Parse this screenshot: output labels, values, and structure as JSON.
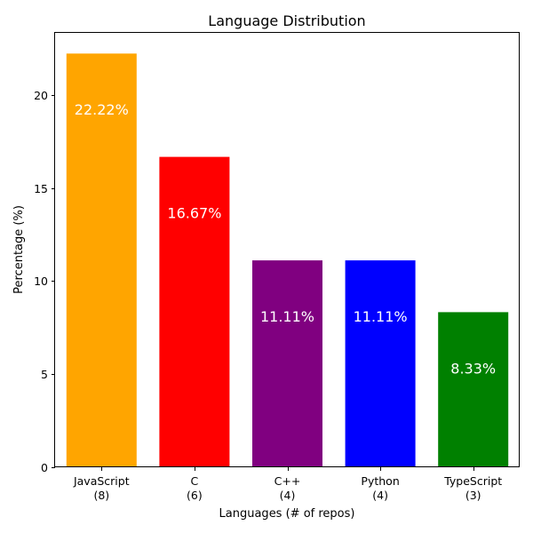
{
  "chart_data": {
    "type": "bar",
    "title": "Language Distribution",
    "xlabel": "Languages (# of repos)",
    "ylabel": "Percentage (%)",
    "ylim": [
      0,
      23.33
    ],
    "yticks": [
      0,
      5,
      10,
      15,
      20
    ],
    "categories": [
      [
        "JavaScript",
        "(8)"
      ],
      [
        "C",
        "(6)"
      ],
      [
        "C++",
        "(4)"
      ],
      [
        "Python",
        "(4)"
      ],
      [
        "TypeScript",
        "(3)"
      ]
    ],
    "values": [
      22.22,
      16.67,
      11.11,
      11.11,
      8.33
    ],
    "data_labels": [
      "22.22%",
      "16.67%",
      "11.11%",
      "11.11%",
      "8.33%"
    ],
    "colors": [
      "#ffa500",
      "#ff0000",
      "#800080",
      "#0000ff",
      "#008000"
    ],
    "grid": false,
    "legend": "none"
  }
}
